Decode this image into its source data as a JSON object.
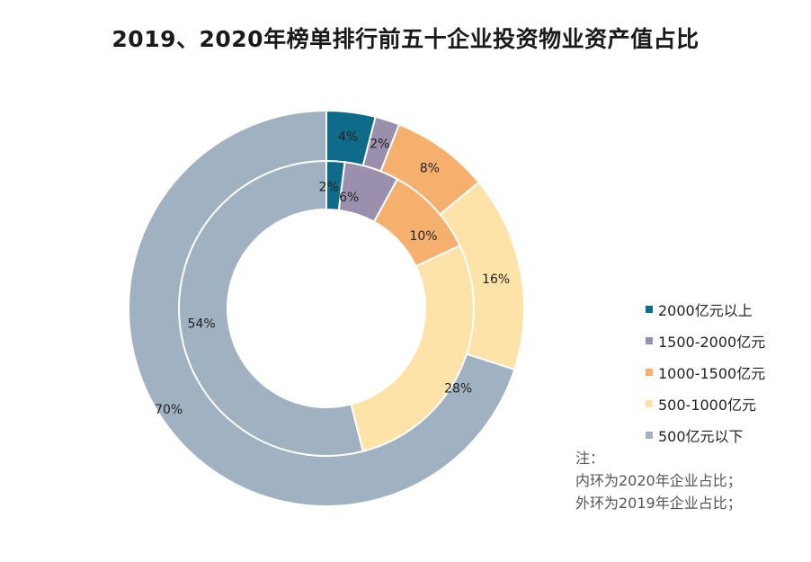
{
  "chart_data": {
    "type": "donut",
    "title": "2019、2020年榜单排行前五十企业投资物业资产值占比",
    "categories": [
      "2000亿元以上",
      "1500-2000亿元",
      "1000-1500亿元",
      "500-1000亿元",
      "500亿元以下"
    ],
    "colors": [
      "#0f6b8a",
      "#9b8fae",
      "#f5b06e",
      "#fde3a8",
      "#a0b1c1"
    ],
    "series": [
      {
        "ring": "outer",
        "values": [
          4,
          2,
          8,
          16,
          70
        ],
        "labels": [
          "4%",
          "2%",
          "8%",
          "16%",
          "70%"
        ]
      },
      {
        "ring": "inner",
        "values": [
          2,
          6,
          10,
          28,
          54
        ],
        "labels": [
          "2%",
          "6%",
          "10%",
          "28%",
          "54%"
        ]
      }
    ]
  },
  "note": {
    "heading": "注：",
    "line1": "内环为2020年企业占比；",
    "line2": "外环为2019年企业占比；"
  }
}
